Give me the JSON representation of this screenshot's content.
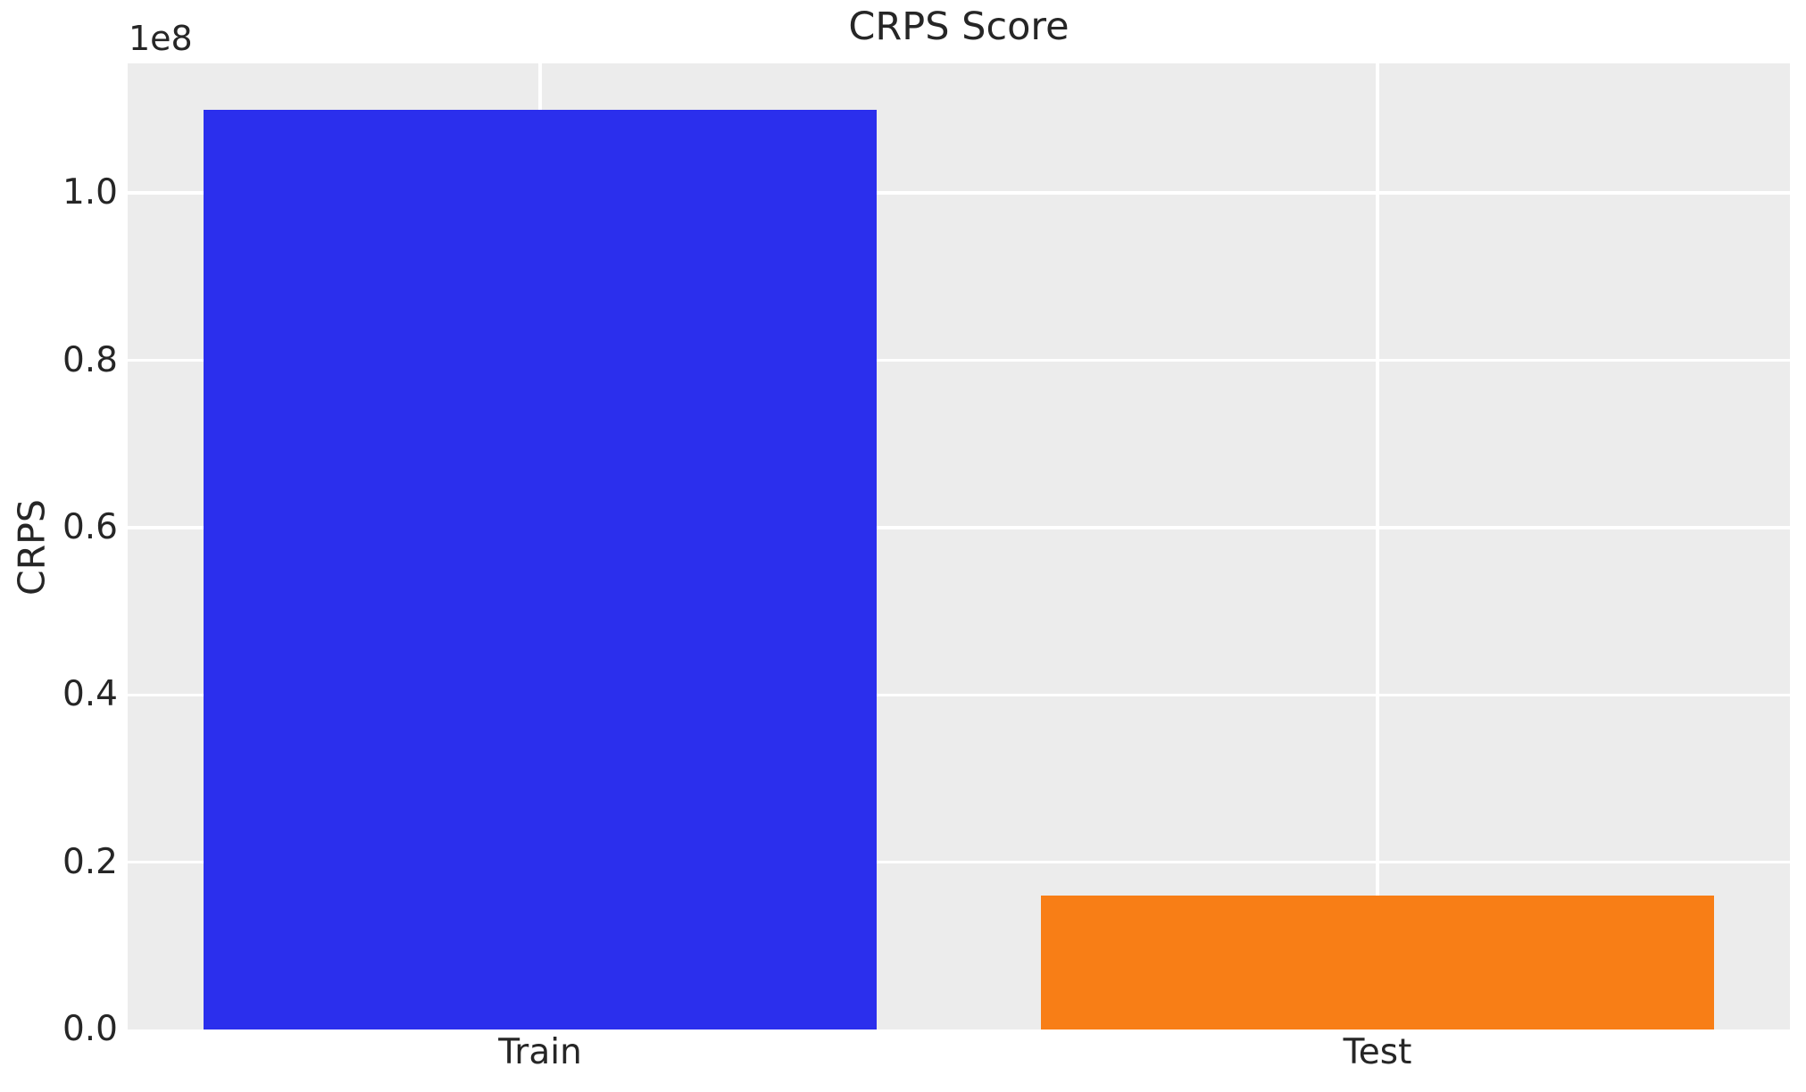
{
  "chart_data": {
    "type": "bar",
    "title": "CRPS Score",
    "ylabel": "CRPS",
    "xlabel": "",
    "y_offset_text": "1e8",
    "categories": [
      "Train",
      "Test"
    ],
    "values": [
      110000000,
      16000000
    ],
    "ylim": [
      0,
      115500000
    ],
    "yticks": [
      0,
      20000000,
      40000000,
      60000000,
      80000000,
      100000000
    ],
    "ytick_labels": [
      "0.0",
      "0.2",
      "0.4",
      "0.6",
      "0.8",
      "1.0"
    ],
    "bar_colors": [
      "#2b2fed",
      "#f87e16"
    ],
    "grid": true,
    "legend": false,
    "plot_bg_color": "#ececec",
    "grid_color": "#ffffff",
    "text_color": "#262626"
  }
}
